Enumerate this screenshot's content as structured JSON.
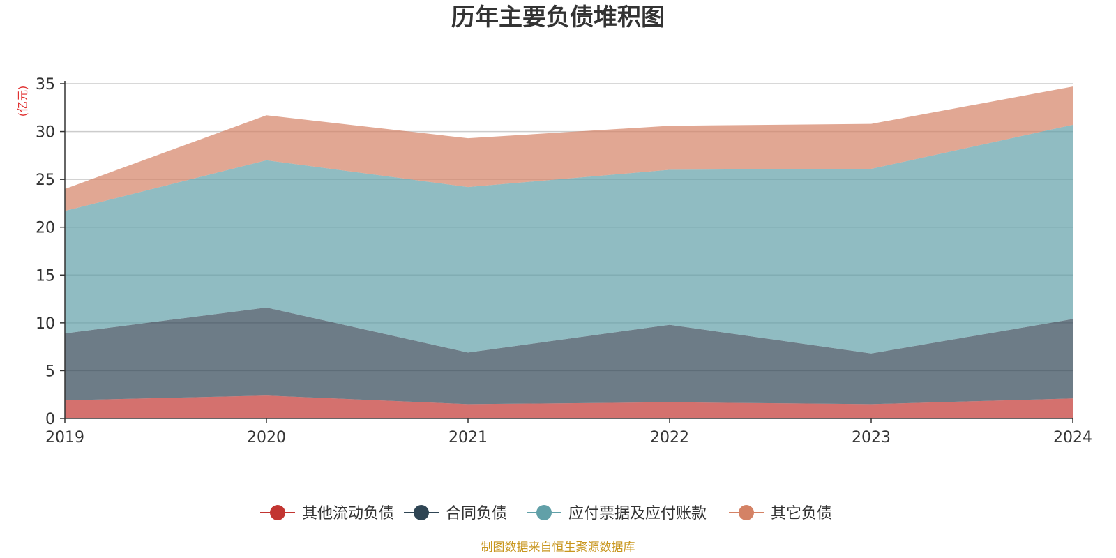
{
  "chart_data": {
    "type": "area",
    "stacked": true,
    "title": "历年主要负债堆积图",
    "y_unit_label": "(亿元)",
    "x": [
      "2019",
      "2020",
      "2021",
      "2022",
      "2023",
      "2024"
    ],
    "y_ticks": [
      "0",
      "5",
      "10",
      "15",
      "20",
      "25",
      "30",
      "35"
    ],
    "ylim": [
      0,
      35
    ],
    "grid": true,
    "legend_position": "bottom",
    "series": [
      {
        "name": "其他流动负债",
        "color": "#c23531",
        "values": [
          1.9,
          2.4,
          1.5,
          1.7,
          1.5,
          2.1
        ]
      },
      {
        "name": "合同负债",
        "color": "#2f4554",
        "values": [
          7.0,
          9.2,
          5.4,
          8.1,
          5.3,
          8.3
        ]
      },
      {
        "name": "应付票据及应付账款",
        "color": "#61a0a8",
        "values": [
          12.8,
          15.4,
          17.3,
          16.2,
          19.3,
          20.3
        ]
      },
      {
        "name": "其它负债",
        "color": "#d48265",
        "values": [
          2.3,
          4.7,
          5.1,
          4.6,
          4.7,
          4.0
        ]
      }
    ],
    "source_note": "制图数据来自恒生聚源数据库"
  }
}
